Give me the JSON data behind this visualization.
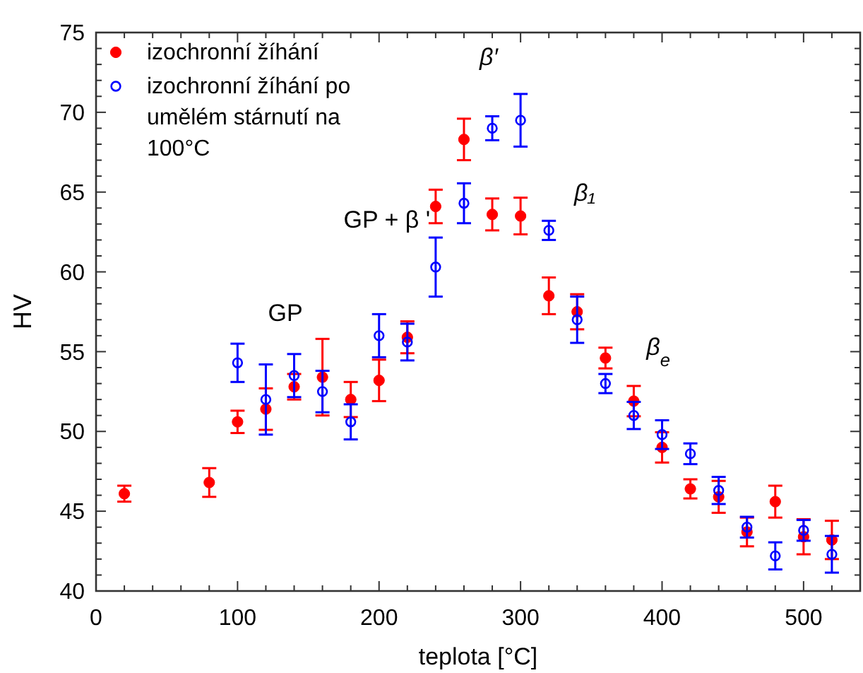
{
  "chart_data": {
    "type": "scatter",
    "xlabel": "teplota [°C]",
    "ylabel": "HV",
    "xlim": [
      0,
      540
    ],
    "ylim": [
      40,
      75
    ],
    "xticks": [
      0,
      {
        "value": 20,
        "label": null
      },
      {
        "value": 40,
        "label": null
      },
      {
        "value": 60,
        "label": null
      },
      {
        "value": 80,
        "label": null
      },
      100,
      {
        "value": 120,
        "label": null
      },
      {
        "value": 140,
        "label": null
      },
      {
        "value": 160,
        "label": null
      },
      {
        "value": 180,
        "label": null
      },
      200,
      {
        "value": 220,
        "label": null
      },
      {
        "value": 240,
        "label": null
      },
      {
        "value": 260,
        "label": null
      },
      {
        "value": 280,
        "label": null
      },
      300,
      {
        "value": 320,
        "label": null
      },
      {
        "value": 340,
        "label": null
      },
      {
        "value": 360,
        "label": null
      },
      {
        "value": 380,
        "label": null
      },
      400,
      {
        "value": 420,
        "label": null
      },
      {
        "value": 440,
        "label": null
      },
      {
        "value": 460,
        "label": null
      },
      {
        "value": 480,
        "label": null
      },
      500,
      {
        "value": 520,
        "label": null
      }
    ],
    "yticks": [
      40,
      {
        "value": 41,
        "label": null
      },
      {
        "value": 42,
        "label": null
      },
      {
        "value": 43,
        "label": null
      },
      {
        "value": 44,
        "label": null
      },
      45,
      {
        "value": 46,
        "label": null
      },
      {
        "value": 47,
        "label": null
      },
      {
        "value": 48,
        "label": null
      },
      {
        "value": 49,
        "label": null
      },
      50,
      {
        "value": 51,
        "label": null
      },
      {
        "value": 52,
        "label": null
      },
      {
        "value": 53,
        "label": null
      },
      {
        "value": 54,
        "label": null
      },
      55,
      {
        "value": 56,
        "label": null
      },
      {
        "value": 57,
        "label": null
      },
      {
        "value": 58,
        "label": null
      },
      {
        "value": 59,
        "label": null
      },
      60,
      {
        "value": 61,
        "label": null
      },
      {
        "value": 62,
        "label": null
      },
      {
        "value": 63,
        "label": null
      },
      {
        "value": 64,
        "label": null
      },
      65,
      {
        "value": 66,
        "label": null
      },
      {
        "value": 67,
        "label": null
      },
      {
        "value": 68,
        "label": null
      },
      {
        "value": 69,
        "label": null
      },
      70,
      {
        "value": 71,
        "label": null
      },
      {
        "value": 72,
        "label": null
      },
      {
        "value": 73,
        "label": null
      },
      {
        "value": 74,
        "label": null
      },
      75
    ],
    "grid": false,
    "legend": "top left",
    "marker": "circle",
    "series": [
      {
        "name": "izochronní žíhání",
        "color": "#ff0000",
        "x": [
          20,
          80,
          100,
          120,
          140,
          160,
          180,
          200,
          220,
          240,
          260,
          280,
          300,
          320,
          340,
          360,
          380,
          400,
          420,
          440,
          460,
          480,
          500,
          520
        ],
        "values": [
          46.1,
          46.8,
          50.6,
          51.4,
          52.8,
          53.4,
          52.0,
          53.2,
          55.9,
          64.1,
          68.3,
          63.6,
          63.5,
          58.5,
          57.5,
          54.6,
          51.9,
          49.0,
          46.4,
          45.9,
          43.7,
          45.6,
          43.4,
          43.2
        ],
        "errors": [
          0.5,
          0.9,
          0.7,
          1.3,
          0.8,
          2.4,
          1.1,
          1.3,
          1.0,
          1.05,
          1.3,
          1.0,
          1.15,
          1.15,
          1.1,
          0.65,
          0.95,
          0.95,
          0.6,
          1.0,
          0.9,
          1.0,
          1.1,
          1.2
        ]
      },
      {
        "name": "izochronní žíhání po umělém stárnutí na 100°C",
        "color": "#0000ff",
        "x": [
          100,
          120,
          140,
          160,
          180,
          200,
          220,
          240,
          260,
          280,
          300,
          320,
          340,
          360,
          380,
          400,
          420,
          440,
          460,
          480,
          500,
          520
        ],
        "values": [
          54.3,
          52.0,
          53.5,
          52.5,
          50.6,
          56.0,
          55.6,
          60.3,
          64.3,
          69.0,
          69.5,
          62.6,
          57.0,
          53.0,
          51.0,
          49.8,
          48.6,
          46.3,
          44.0,
          42.2,
          43.8,
          42.3
        ],
        "errors": [
          1.2,
          2.2,
          1.35,
          1.3,
          1.1,
          1.35,
          1.15,
          1.85,
          1.25,
          0.75,
          1.65,
          0.6,
          1.45,
          0.6,
          0.85,
          0.9,
          0.65,
          0.85,
          0.65,
          0.85,
          0.65,
          1.15
        ]
      }
    ],
    "annotations": [
      "β′",
      "GP + β '",
      "β₁",
      "β$_{e}$",
      "GP"
    ]
  }
}
